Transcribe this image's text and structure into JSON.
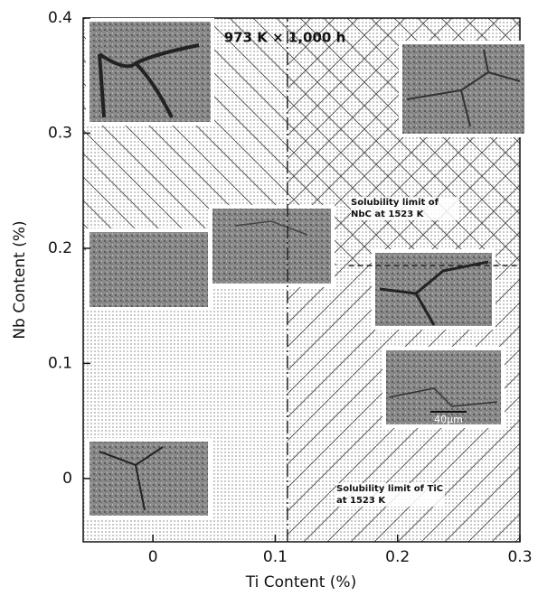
{
  "chart_data": {
    "type": "line",
    "title": "973 K × 1,000 h",
    "x_label": "Ti Content (%)",
    "y_label": "Nb Content (%)",
    "xlim": [
      -0.057,
      0.3
    ],
    "ylim": [
      -0.055,
      0.4
    ],
    "xticks": [
      0,
      0.1,
      0.2,
      0.3
    ],
    "yticks": [
      0,
      0.1,
      0.2,
      0.3,
      0.4
    ],
    "series": [
      {
        "name": "Solubility limit of TiC at 1523 K",
        "color": "#222222",
        "x": [
          0.11,
          0.11
        ],
        "values": [
          -0.055,
          0.4
        ]
      },
      {
        "name": "Solubility limit of NbC at 1523 K",
        "color": "#222222",
        "x": [
          0.16,
          0.3
        ],
        "values": [
          0.185,
          0.185
        ]
      }
    ],
    "scale_bar": "40μm"
  }
}
